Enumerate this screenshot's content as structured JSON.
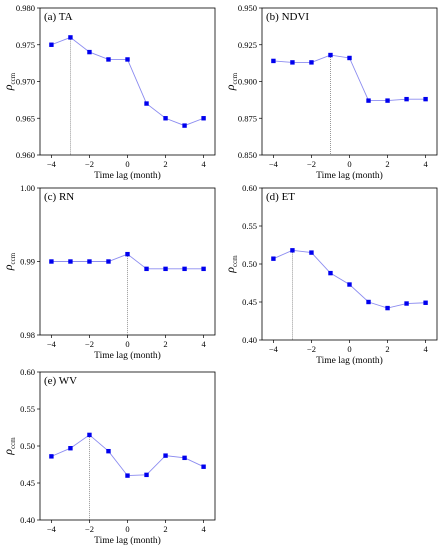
{
  "chart_data": [
    {
      "type": "line",
      "panel_label": "(a) TA",
      "xlabel": "Time lag (month)",
      "ylabel": "ρ",
      "ylabel_sub": "ccm",
      "xlim": [
        -4.6,
        4.6
      ],
      "ylim": [
        0.96,
        0.98
      ],
      "xticks": [
        -4,
        -2,
        0,
        2,
        4
      ],
      "xtick_labels": [
        "−4",
        "−2",
        "0",
        "2",
        "4"
      ],
      "yticks": [
        0.96,
        0.965,
        0.97,
        0.975,
        0.98
      ],
      "ytick_labels": [
        "0.960",
        "0.965",
        "0.970",
        "0.975",
        "0.980"
      ],
      "x": [
        -4,
        -3,
        -2,
        -1,
        0,
        1,
        2,
        3,
        4
      ],
      "y": [
        0.975,
        0.976,
        0.974,
        0.973,
        0.973,
        0.967,
        0.965,
        0.964,
        0.965
      ],
      "peak_lag": -3,
      "marker_color": "#0000ee",
      "line_color": "#8c8cf0"
    },
    {
      "type": "line",
      "panel_label": "(b) NDVI",
      "xlabel": "Time lag (month)",
      "ylabel": "ρ",
      "ylabel_sub": "ccm",
      "xlim": [
        -4.6,
        4.6
      ],
      "ylim": [
        0.85,
        0.95
      ],
      "xticks": [
        -4,
        -2,
        0,
        2,
        4
      ],
      "xtick_labels": [
        "−4",
        "−2",
        "0",
        "2",
        "4"
      ],
      "yticks": [
        0.85,
        0.875,
        0.9,
        0.925,
        0.95
      ],
      "ytick_labels": [
        "0.850",
        "0.875",
        "0.900",
        "0.925",
        "0.950"
      ],
      "x": [
        -4,
        -3,
        -2,
        -1,
        0,
        1,
        2,
        3,
        4
      ],
      "y": [
        0.914,
        0.913,
        0.913,
        0.918,
        0.916,
        0.887,
        0.887,
        0.888,
        0.888
      ],
      "peak_lag": -1,
      "marker_color": "#0000ee",
      "line_color": "#8c8cf0"
    },
    {
      "type": "line",
      "panel_label": "(c) RN",
      "xlabel": "Time lag (month)",
      "ylabel": "ρ",
      "ylabel_sub": "ccm",
      "xlim": [
        -4.6,
        4.6
      ],
      "ylim": [
        0.98,
        1.0
      ],
      "xticks": [
        -4,
        -2,
        0,
        2,
        4
      ],
      "xtick_labels": [
        "−4",
        "−2",
        "0",
        "2",
        "4"
      ],
      "yticks": [
        0.98,
        0.99,
        1.0
      ],
      "ytick_labels": [
        "0.98",
        "0.99",
        "1.00"
      ],
      "x": [
        -4,
        -3,
        -2,
        -1,
        0,
        1,
        2,
        3,
        4
      ],
      "y": [
        0.99,
        0.99,
        0.99,
        0.99,
        0.991,
        0.989,
        0.989,
        0.989,
        0.989
      ],
      "peak_lag": 0,
      "marker_color": "#0000ee",
      "line_color": "#8c8cf0"
    },
    {
      "type": "line",
      "panel_label": "(d) ET",
      "xlabel": "Time lag (month)",
      "ylabel": "ρ",
      "ylabel_sub": "ccm",
      "xlim": [
        -4.6,
        4.6
      ],
      "ylim": [
        0.4,
        0.6
      ],
      "xticks": [
        -4,
        -2,
        0,
        2,
        4
      ],
      "xtick_labels": [
        "−4",
        "−2",
        "0",
        "2",
        "4"
      ],
      "yticks": [
        0.4,
        0.45,
        0.5,
        0.55,
        0.6
      ],
      "ytick_labels": [
        "0.40",
        "0.45",
        "0.50",
        "0.55",
        "0.60"
      ],
      "x": [
        -4,
        -3,
        -2,
        -1,
        0,
        1,
        2,
        3,
        4
      ],
      "y": [
        0.507,
        0.518,
        0.515,
        0.488,
        0.473,
        0.45,
        0.442,
        0.448,
        0.449
      ],
      "peak_lag": -3,
      "marker_color": "#0000ee",
      "line_color": "#8c8cf0"
    },
    {
      "type": "line",
      "panel_label": "(e) WV",
      "xlabel": "Time lag (month)",
      "ylabel": "ρ",
      "ylabel_sub": "ccm",
      "xlim": [
        -4.6,
        4.6
      ],
      "ylim": [
        0.4,
        0.6
      ],
      "xticks": [
        -4,
        -2,
        0,
        2,
        4
      ],
      "xtick_labels": [
        "−4",
        "−2",
        "0",
        "2",
        "4"
      ],
      "yticks": [
        0.4,
        0.45,
        0.5,
        0.55,
        0.6
      ],
      "ytick_labels": [
        "0.40",
        "0.45",
        "0.50",
        "0.55",
        "0.60"
      ],
      "x": [
        -4,
        -3,
        -2,
        -1,
        0,
        1,
        2,
        3,
        4
      ],
      "y": [
        0.486,
        0.497,
        0.515,
        0.493,
        0.46,
        0.461,
        0.487,
        0.484,
        0.472
      ],
      "peak_lag": -2,
      "marker_color": "#0000ee",
      "line_color": "#8c8cf0"
    }
  ]
}
